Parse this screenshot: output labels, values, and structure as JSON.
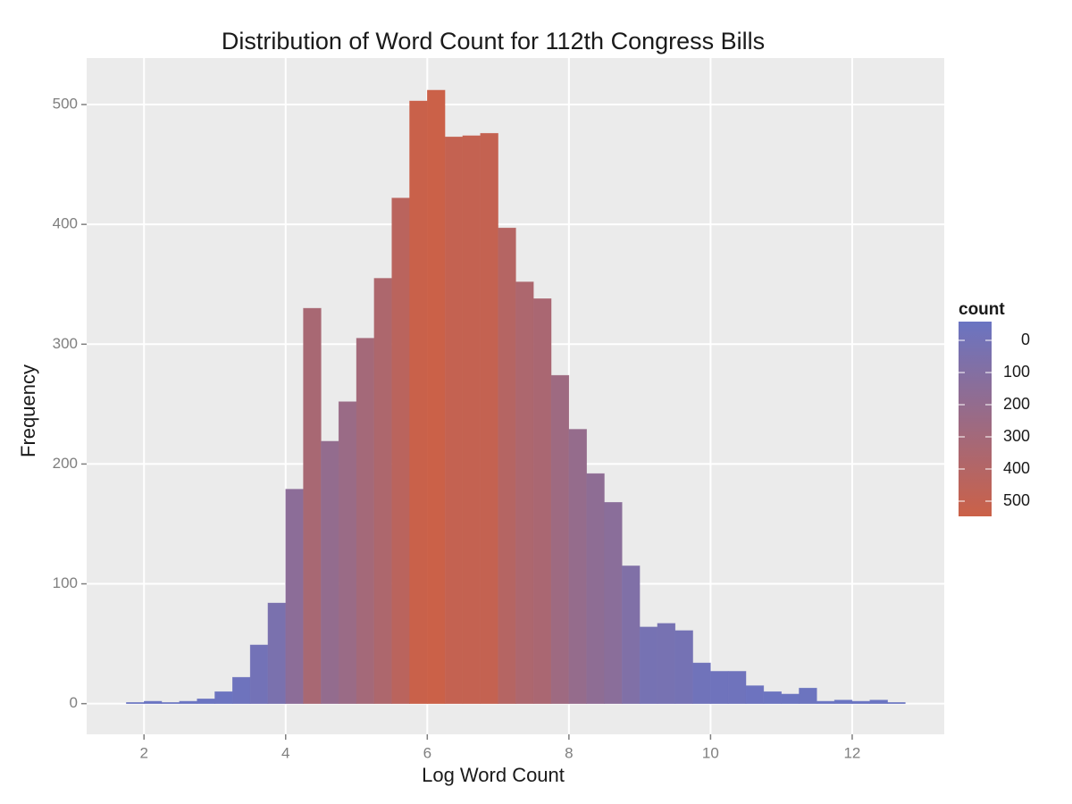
{
  "chart_data": {
    "type": "histogram",
    "title": "Distribution of Word Count for 112th Congress Bills",
    "x_label": "Log Word Count",
    "y_label": "Frequency",
    "bins": [
      1.75,
      2,
      2.25,
      2.5,
      2.75,
      3,
      3.25,
      3.5,
      3.75,
      4,
      4.25,
      4.5,
      4.75,
      5,
      5.25,
      5.5,
      5.75,
      6,
      6.25,
      6.5,
      6.75,
      7,
      7.25,
      7.5,
      7.75,
      8,
      8.25,
      8.5,
      8.75,
      9,
      9.25,
      9.5,
      9.75,
      10,
      10.25,
      10.5,
      10.75,
      11,
      11.25,
      11.5,
      11.75,
      12,
      12.25,
      12.5,
      12.75
    ],
    "values": [
      1,
      2,
      1,
      2,
      4,
      10,
      22,
      49,
      84,
      179,
      330,
      219,
      252,
      305,
      355,
      422,
      503,
      512,
      473,
      474,
      476,
      397,
      352,
      338,
      274,
      229,
      192,
      168,
      115,
      64,
      67,
      61,
      34,
      27,
      27,
      15,
      10,
      8,
      13,
      2,
      3,
      2,
      3,
      1
    ],
    "xlim": [
      1.19,
      13.3
    ],
    "xticks": [
      2,
      4,
      6,
      8,
      10,
      12
    ],
    "ylim": [
      -25.6,
      538.8
    ],
    "yticks": [
      0,
      100,
      200,
      300,
      400,
      500
    ],
    "grid": true,
    "fill_scale": {
      "title": "count",
      "ticks": [
        0,
        100,
        200,
        300,
        400,
        500
      ],
      "colors": [
        "#6a74c2",
        "#cb6148"
      ]
    }
  }
}
